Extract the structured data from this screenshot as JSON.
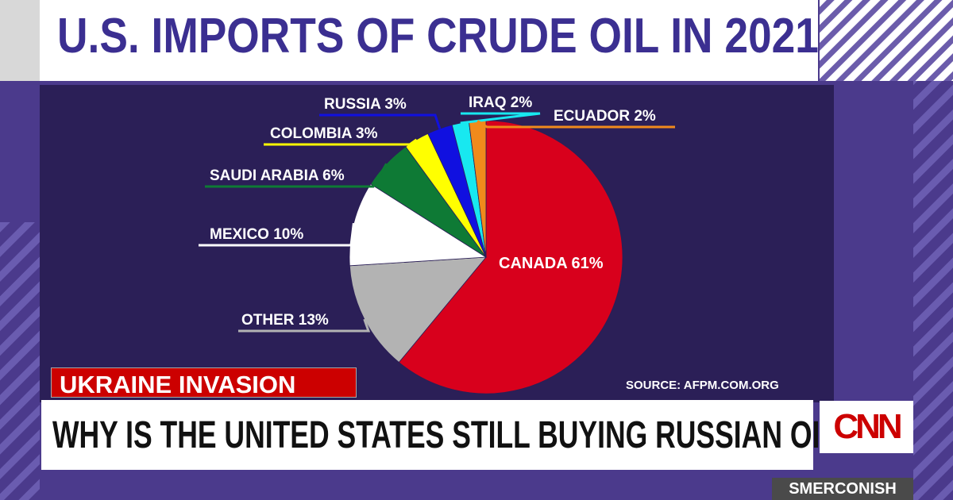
{
  "title": "U.S. IMPORTS OF CRUDE OIL IN 2021",
  "source": "SOURCE: AFPM.COM.ORG",
  "tag": "UKRAINE INVASION",
  "headline": "WHY IS THE UNITED STATES STILL BUYING RUSSIAN OIL?",
  "network_logo": "CNN",
  "show_name": "SMERCONISH",
  "chart_data": {
    "type": "pie",
    "title": "U.S. IMPORTS OF CRUDE OIL IN 2021",
    "slices": [
      {
        "label": "CANADA",
        "value": 61,
        "color": "#d8001c"
      },
      {
        "label": "OTHER",
        "value": 13,
        "color": "#b3b3b3"
      },
      {
        "label": "MEXICO",
        "value": 10,
        "color": "#ffffff"
      },
      {
        "label": "SAUDI ARABIA",
        "value": 6,
        "color": "#0e7a35"
      },
      {
        "label": "COLOMBIA",
        "value": 3,
        "color": "#ffff00"
      },
      {
        "label": "RUSSIA",
        "value": 3,
        "color": "#1010e0"
      },
      {
        "label": "IRAQ",
        "value": 2,
        "color": "#18e8f0"
      },
      {
        "label": "ECUADOR",
        "value": 2,
        "color": "#f08a1c"
      }
    ],
    "labels": [
      "CANADA 61%",
      "OTHER 13%",
      "MEXICO 10%",
      "SAUDI ARABIA 6%",
      "COLOMBIA 3%",
      "RUSSIA 3%",
      "IRAQ 2%",
      "ECUADOR 2%"
    ]
  }
}
